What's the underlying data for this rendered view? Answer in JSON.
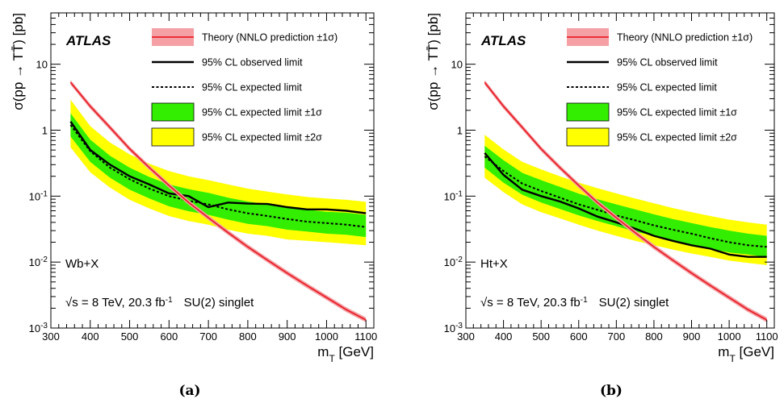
{
  "chart_data": [
    {
      "type": "line",
      "caption": "(a)",
      "experiment": "ATLAS",
      "channel": "Wb+X",
      "energy_label": "√s = 8 TeV, 20.3 fb",
      "energy_sup": "-1",
      "model_label": "SU(2) singlet",
      "xlabel": "m",
      "xlabel_sub": "T",
      "xlabel_unit": " [GeV]",
      "ylabel": "σ(pp → TT̄) [pb]",
      "xlim": [
        300,
        1120
      ],
      "ylim": [
        0.001,
        60
      ],
      "yscale": "log",
      "x_ticks": [
        300,
        400,
        500,
        600,
        700,
        800,
        900,
        1000,
        1100
      ],
      "y_tick_labels": [
        {
          "value": 0.001,
          "base": "10",
          "exp": "-3"
        },
        {
          "value": 0.01,
          "base": "10",
          "exp": "-2"
        },
        {
          "value": 0.1,
          "base": "10",
          "exp": "-1"
        },
        {
          "value": 1,
          "base": "1",
          "exp": ""
        },
        {
          "value": 10,
          "base": "10",
          "exp": ""
        }
      ],
      "legend": {
        "placement": "top-right",
        "entries": [
          {
            "label": "Theory (NNLO prediction ±1σ)",
            "style": "theory"
          },
          {
            "label": "95% CL observed limit",
            "style": "observed"
          },
          {
            "label": "95% CL expected limit",
            "style": "expected"
          },
          {
            "label": "95% CL expected limit ±1σ",
            "style": "band1"
          },
          {
            "label": "95% CL expected limit ±2σ",
            "style": "band2"
          }
        ]
      },
      "colors": {
        "theory": "#e8202a",
        "theory_band": "#f4a0a4",
        "band1": "#33ee00",
        "band2": "#ffff00",
        "observed": "#000000",
        "expected": "#000000"
      },
      "x": [
        350,
        400,
        450,
        500,
        550,
        600,
        650,
        700,
        750,
        800,
        850,
        900,
        950,
        1000,
        1050,
        1100
      ],
      "series": [
        {
          "name": "Theory (NNLO prediction ±1σ)",
          "values": [
            5.3,
            2.3,
            1.1,
            0.52,
            0.27,
            0.145,
            0.08,
            0.047,
            0.028,
            0.017,
            0.0107,
            0.0068,
            0.0044,
            0.0029,
            0.0019,
            0.00133
          ]
        },
        {
          "name": "95% CL observed limit",
          "values": [
            1.35,
            0.5,
            0.3,
            0.2,
            0.15,
            0.11,
            0.1,
            0.068,
            0.08,
            0.077,
            0.076,
            0.068,
            0.063,
            0.063,
            0.06,
            0.055
          ]
        },
        {
          "name": "95% CL expected limit",
          "values": [
            1.2,
            0.48,
            0.27,
            0.18,
            0.13,
            0.1,
            0.085,
            0.075,
            0.063,
            0.055,
            0.05,
            0.045,
            0.041,
            0.039,
            0.037,
            0.034
          ]
        },
        {
          "name": "95% CL expected limit ±1σ",
          "lower": [
            0.8,
            0.33,
            0.19,
            0.125,
            0.092,
            0.07,
            0.059,
            0.052,
            0.044,
            0.038,
            0.035,
            0.031,
            0.029,
            0.027,
            0.026,
            0.024
          ],
          "upper": [
            1.8,
            0.72,
            0.41,
            0.27,
            0.195,
            0.15,
            0.128,
            0.112,
            0.095,
            0.083,
            0.075,
            0.068,
            0.062,
            0.058,
            0.056,
            0.052
          ]
        },
        {
          "name": "95% CL expected limit ±2σ",
          "lower": [
            0.55,
            0.23,
            0.135,
            0.088,
            0.065,
            0.05,
            0.042,
            0.037,
            0.031,
            0.027,
            0.025,
            0.022,
            0.021,
            0.02,
            0.019,
            0.018
          ],
          "upper": [
            2.9,
            1.15,
            0.65,
            0.43,
            0.31,
            0.24,
            0.2,
            0.175,
            0.15,
            0.13,
            0.117,
            0.106,
            0.097,
            0.092,
            0.088,
            0.082
          ]
        }
      ]
    },
    {
      "type": "line",
      "caption": "(b)",
      "experiment": "ATLAS",
      "channel": "Ht+X",
      "energy_label": "√s = 8 TeV, 20.3 fb",
      "energy_sup": "-1",
      "model_label": "SU(2) singlet",
      "xlabel": "m",
      "xlabel_sub": "T",
      "xlabel_unit": " [GeV]",
      "ylabel": "σ(pp → TT̄) [pb]",
      "xlim": [
        300,
        1120
      ],
      "ylim": [
        0.001,
        60
      ],
      "yscale": "log",
      "x_ticks": [
        300,
        400,
        500,
        600,
        700,
        800,
        900,
        1000,
        1100
      ],
      "y_tick_labels": [
        {
          "value": 0.001,
          "base": "10",
          "exp": "-3"
        },
        {
          "value": 0.01,
          "base": "10",
          "exp": "-2"
        },
        {
          "value": 0.1,
          "base": "10",
          "exp": "-1"
        },
        {
          "value": 1,
          "base": "1",
          "exp": ""
        },
        {
          "value": 10,
          "base": "10",
          "exp": ""
        }
      ],
      "legend": {
        "placement": "top-right",
        "entries": [
          {
            "label": "Theory (NNLO prediction ±1σ)",
            "style": "theory"
          },
          {
            "label": "95% CL observed limit",
            "style": "observed"
          },
          {
            "label": "95% CL expected limit",
            "style": "expected"
          },
          {
            "label": "95% CL expected limit ±1σ",
            "style": "band1"
          },
          {
            "label": "95% CL expected limit ±2σ",
            "style": "band2"
          }
        ]
      },
      "colors": {
        "theory": "#e8202a",
        "theory_band": "#f4a0a4",
        "band1": "#33ee00",
        "band2": "#ffff00",
        "observed": "#000000",
        "expected": "#000000"
      },
      "x": [
        350,
        400,
        450,
        500,
        550,
        600,
        650,
        700,
        750,
        800,
        850,
        900,
        950,
        1000,
        1050,
        1100
      ],
      "series": [
        {
          "name": "Theory (NNLO prediction ±1σ)",
          "values": [
            5.3,
            2.3,
            1.1,
            0.52,
            0.27,
            0.145,
            0.08,
            0.047,
            0.028,
            0.017,
            0.0107,
            0.0068,
            0.0044,
            0.0029,
            0.0019,
            0.00133
          ]
        },
        {
          "name": "95% CL observed limit",
          "values": [
            0.45,
            0.21,
            0.125,
            0.1,
            0.083,
            0.065,
            0.049,
            0.04,
            0.032,
            0.025,
            0.021,
            0.018,
            0.016,
            0.013,
            0.012,
            0.012
          ]
        },
        {
          "name": "95% CL expected limit",
          "values": [
            0.4,
            0.24,
            0.155,
            0.12,
            0.095,
            0.075,
            0.062,
            0.051,
            0.043,
            0.036,
            0.031,
            0.027,
            0.023,
            0.02,
            0.018,
            0.017
          ]
        },
        {
          "name": "95% CL expected limit ±1σ",
          "lower": [
            0.27,
            0.16,
            0.105,
            0.08,
            0.064,
            0.051,
            0.042,
            0.035,
            0.029,
            0.025,
            0.021,
            0.018,
            0.016,
            0.014,
            0.013,
            0.012
          ],
          "upper": [
            0.58,
            0.35,
            0.225,
            0.175,
            0.138,
            0.109,
            0.09,
            0.075,
            0.063,
            0.053,
            0.045,
            0.039,
            0.034,
            0.03,
            0.027,
            0.025
          ]
        },
        {
          "name": "95% CL expected limit ±2σ",
          "lower": [
            0.19,
            0.115,
            0.075,
            0.057,
            0.046,
            0.037,
            0.03,
            0.025,
            0.021,
            0.018,
            0.0155,
            0.0135,
            0.012,
            0.0105,
            0.0097,
            0.009
          ],
          "upper": [
            0.85,
            0.51,
            0.33,
            0.255,
            0.2,
            0.16,
            0.132,
            0.11,
            0.092,
            0.078,
            0.066,
            0.057,
            0.05,
            0.044,
            0.04,
            0.037
          ]
        }
      ]
    }
  ]
}
